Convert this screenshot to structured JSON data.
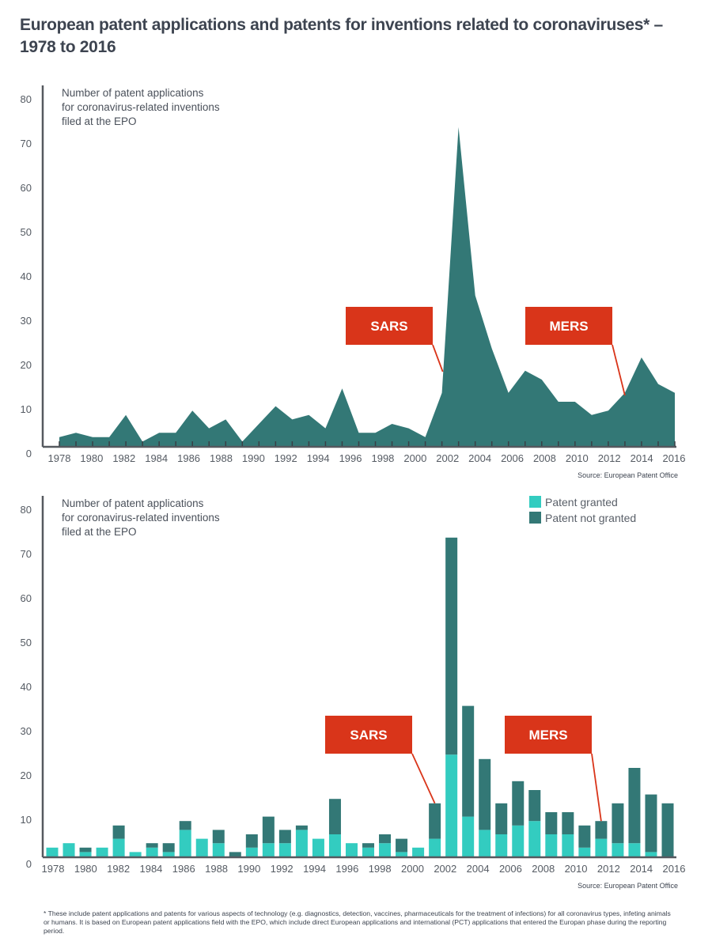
{
  "title": "European patent applications and patents for inventions related to coronaviruses* – 1978 to 2016",
  "footnote": "* These include patent applications and patents for various aspects of technology (e.g. diagnostics, detection, vaccines, pharmaceuticals for the treatment of infections) for all coronavirus types, infeting animals or humans. It is based on European patent applications field with the EPO, which include direct European applications and international (PCT) applications that entered the Europan phase during the reporting period.",
  "colors": {
    "not_granted": "#337876",
    "granted": "#33ccc0",
    "annotation": "#d9351a",
    "axis": "#55595f"
  },
  "chart_data": [
    {
      "type": "area",
      "title": "",
      "ylabel": "Number of patent applications for coronavirus-related inventions filed at the EPO",
      "ylabel_lines": [
        "Number of patent applications",
        "for coronavirus-related inventions",
        "filed at the EPO"
      ],
      "xlabel": "",
      "ylim": [
        0,
        80
      ],
      "yticks": [
        0,
        10,
        20,
        30,
        40,
        50,
        60,
        70,
        80
      ],
      "xtick_labels": [
        "1978",
        "1980",
        "1982",
        "1984",
        "1986",
        "1988",
        "1990",
        "1992",
        "1994",
        "1996",
        "1998",
        "2000",
        "2002",
        "2004",
        "2006",
        "2008",
        "2010",
        "2012",
        "2014",
        "2016"
      ],
      "values": [
        2,
        3,
        2,
        2,
        7,
        1,
        3,
        3,
        8,
        4,
        6,
        1,
        5,
        9,
        6,
        7,
        4,
        13,
        3,
        3,
        5,
        4,
        2,
        12,
        72,
        34,
        22,
        12,
        17,
        15,
        10,
        10,
        7,
        8,
        12,
        20,
        14,
        12
      ],
      "grid": false,
      "annotations": [
        {
          "label": "SARS",
          "point_index": 24
        },
        {
          "label": "MERS",
          "point_index": 35
        }
      ],
      "source": "Source: European Patent Office"
    },
    {
      "type": "bar",
      "stacked": true,
      "title": "",
      "ylabel": "Number of patent applications for coronavirus-related inventions filed at the EPO",
      "ylabel_lines": [
        "Number of patent applications",
        "for coronavirus-related inventions",
        "filed at the EPO"
      ],
      "xlabel": "",
      "ylim": [
        0,
        80
      ],
      "yticks": [
        0,
        10,
        20,
        30,
        40,
        50,
        60,
        70,
        80
      ],
      "xtick_labels": [
        "1978",
        "1980",
        "1982",
        "1984",
        "1986",
        "1988",
        "1990",
        "1992",
        "1994",
        "1996",
        "1998",
        "2000",
        "2002",
        "2004",
        "2006",
        "2008",
        "2010",
        "2012",
        "2014",
        "2016"
      ],
      "series": [
        {
          "name": "Patent granted",
          "values": [
            2,
            3,
            1,
            2,
            4,
            1,
            2,
            1,
            6,
            4,
            3,
            0,
            2,
            3,
            3,
            6,
            4,
            5,
            3,
            2,
            3,
            1,
            2,
            4,
            23,
            9,
            6,
            5,
            7,
            8,
            5,
            5,
            2,
            4,
            3,
            3,
            1,
            0
          ]
        },
        {
          "name": "Patent not granted",
          "values": [
            0,
            0,
            1,
            0,
            3,
            0,
            1,
            2,
            2,
            0,
            3,
            1,
            3,
            6,
            3,
            1,
            0,
            8,
            0,
            1,
            2,
            3,
            0,
            8,
            49,
            25,
            16,
            7,
            10,
            7,
            5,
            5,
            5,
            4,
            9,
            17,
            13,
            12
          ]
        }
      ],
      "legend": {
        "position": "top-right",
        "entries": [
          "Patent granted",
          "Patent not granted"
        ]
      },
      "grid": false,
      "annotations": [
        {
          "label": "SARS",
          "point_index": 23
        },
        {
          "label": "MERS",
          "point_index": 33
        }
      ],
      "source": "Source: European Patent Office"
    }
  ]
}
